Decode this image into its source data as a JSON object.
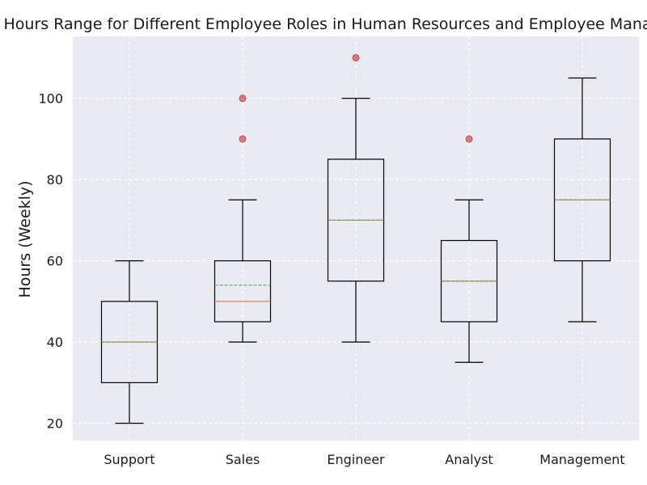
{
  "chart_data": {
    "type": "boxplot",
    "title": "Working Hours Range for Different Employee Roles in Human Resources and Employee Management",
    "ylabel": "Hours (Weekly)",
    "xlabel": "",
    "ylim": [
      15.75,
      115.25
    ],
    "yticks": [
      20,
      40,
      60,
      80,
      100
    ],
    "grid": true,
    "categories": [
      "Support",
      "Sales",
      "Engineer",
      "Analyst",
      "Management"
    ],
    "boxes": [
      {
        "name": "Support",
        "whisker_low": 20,
        "q1": 30,
        "median": 40,
        "mean": 40,
        "q3": 50,
        "whisker_high": 60,
        "outliers": []
      },
      {
        "name": "Sales",
        "whisker_low": 40,
        "q1": 45,
        "median": 50,
        "mean": 54,
        "q3": 60,
        "whisker_high": 75,
        "outliers": [
          90,
          100
        ]
      },
      {
        "name": "Engineer",
        "whisker_low": 40,
        "q1": 55,
        "median": 70,
        "mean": 70,
        "q3": 85,
        "whisker_high": 100,
        "outliers": [
          110
        ]
      },
      {
        "name": "Analyst",
        "whisker_low": 35,
        "q1": 45,
        "median": 55,
        "mean": 55,
        "q3": 65,
        "whisker_high": 75,
        "outliers": [
          90
        ]
      },
      {
        "name": "Management",
        "whisker_low": 45,
        "q1": 60,
        "median": 75,
        "mean": 75,
        "q3": 90,
        "whisker_high": 105,
        "outliers": []
      }
    ],
    "colors": {
      "background": "#eaeaf2",
      "grid": "#ffffff",
      "box": "#000000",
      "median": "#dd8452",
      "mean": "#55a868",
      "outlier": "#c44e52"
    }
  }
}
